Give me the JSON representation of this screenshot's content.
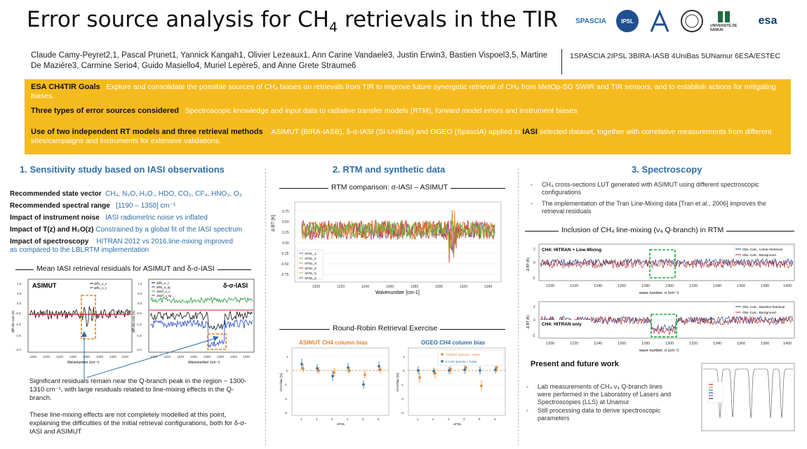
{
  "title": {
    "main": "Error source analysis for CH",
    "sub": "4",
    "rest": " retrievals in the TIR"
  },
  "logos": [
    "SPASCIA",
    "IPSL",
    "BIRA",
    "UniBas",
    "UNIVERSITÉ DE NAMUR",
    "esa"
  ],
  "authors": "Claude Camy-Peyret2,1, Pascal Prunet1, Yannick Kangah1, Olivier Lezeaux1, Ann Carine Vandaele3, Justin Erwin3, Bastien Vispoel3,5, Martine De Mazière3, Carmine Serio4, Guido Masiello4, Muriel Lepère5, and Anne Grete Straume6",
  "affiliations": "1SPASCIA 2IPSL 3BIRA-IASB 4UniBas 5UNamur 6ESA/ESTEC",
  "goals": {
    "g1_label": "ESA CH4TIR Goals",
    "g1_text": "Explore and consolidate the possible sources of CH₄ biases on retrievals from TIR to improve future synergetic retrieval of CH₄ from MetOp-SG SWIR and TIR sensors, and to establish actions for mitigating biases.",
    "g2_label": "Three types of error sources considered",
    "g2_text": "Spectroscopic knowledge and input data to radiative transfer models (RTM), forward model errors and instrument biases",
    "g3_label": "Use of two independent RT models and three retrieval methods",
    "g3_text_a": "ASIMUT (BIRA-IASB), δ-σ-IASI (SI-UniBas) and OGEO (SpasciA) applied to",
    "g3_iasi": "IASI",
    "g3_text_b": "selected dataset, together with correlative measurements from different sites/campaigns and instruments for extensive validations."
  },
  "sec1": {
    "heading": "1. Sensitivity study based on IASI observations",
    "rows": [
      {
        "label": "Recommended state vector",
        "value": "CH₄, N₂O, H₂O,, HDO, CO₂, CF₄, HNO₃, O₃"
      },
      {
        "label": "Recommended spectral range",
        "value": "[1190 – 1350] cm⁻¹"
      },
      {
        "label": "Impact of instrument noise",
        "value": "IASI radiometric noise vs inflated"
      },
      {
        "label": "Impact of T(z) and H₂O(z)",
        "value": "Constrained by a global fit of the IASI spectrum"
      },
      {
        "label": "Impact of spectroscopy",
        "value": "HITRAN 2012 vs 2016,line-mixing improved"
      }
    ],
    "row_extra": "as compared to the LBLRTM implementation",
    "resid_title": "Mean IASI retrieval residuals for ASIMUT and δ-σ-IASI",
    "asimut_label": "ASIMUT",
    "dsi_label": "δ-σ-IASI",
    "asimut_legend": [
      "diff1_o_c",
      "diff1_o_c"
    ],
    "dsi_legend": [
      "diff1_o_c",
      "diff1_o_tg",
      "obs/f_o_c",
      "obs/f_o_tg"
    ],
    "xlabel": "Wavenumber (cm⁻¹)",
    "ylabel_a": "diff obs-calc (K)",
    "ylabel_b": "diff obs-calc (K)",
    "yticks": [
      "1.0",
      "0.5",
      "0.0",
      "-0.5",
      "-1.0",
      "-1.5",
      "-2.0"
    ],
    "xticks": [
      "1200",
      "1220",
      "1240",
      "1260",
      "1280",
      "1300",
      "1320",
      "1340"
    ],
    "note1": "Significant residuals remain near the Q-branch peak in the region ~ 1300-1310 cm⁻¹, with large residuals related to line-mixing effects in the Q-branch.",
    "note2": "These line-mixing effects are not completely modelled at this point, explaining the difficulties of the initial retrieval configurations, both for δ-σ-IASI and ASIMUT"
  },
  "sec2": {
    "heading": "2. RTM and synthetic data",
    "rtm_title": "RTM comparison: σ-IASI – ASIMUT",
    "rtm_ylabel": "Δ BT [K]",
    "rtm_xlabel": "Wavenumber [cm-1]",
    "rtm_yticks": [
      "0.75",
      "0.50",
      "0.25",
      "0.00",
      "-0.25",
      "-0.50",
      "-0.75"
    ],
    "rtm_xticks": [
      "1200",
      "1220",
      "1240",
      "1260",
      "1280",
      "1300",
      "1320",
      "1340"
    ],
    "rtm_legend": [
      "AFGL_1",
      "AFGL_2",
      "AFGL_3",
      "AFGL_4",
      "AFGL_5",
      "AFGL_6"
    ],
    "rr_title": "Round-Robin Retrieval Exercise",
    "asimut_bias_title": "ASIMUT CH4 column bias",
    "ogeo_bias_title": "OGEO CH4 column bias",
    "bias_ylabel": "CH4 bias [%]",
    "bias_xlabel": "AFGL",
    "bias_yticks": [
      "1",
      "0",
      "-1",
      "-2",
      "-3"
    ],
    "bias_xticks": [
      "1",
      "2",
      "3",
      "4",
      "5",
      "6"
    ],
    "ogeo_legend": [
      "ASIMUT spectra + noise",
      "σ-IASI spectra + noise"
    ]
  },
  "sec3": {
    "heading": "3. Spectroscopy",
    "bullet1": "CH₄ cross-sections LUT generated with ASIMUT using different spectroscopic configurations",
    "bullet2": "The implementation of the Tran Line-Mixing data [Tran et al., 2006] improves the retrieval residuals",
    "lm_title": "Inclusion of CH₄ line-mixing (ν₄ Q-branch) in RTM",
    "panel1_label": "CH4: HITRAN + Line-Mixing",
    "panel1_legend": [
      "Obs.-Calc., Lmtran Retrieval",
      "Obs.-Calc., Background"
    ],
    "panel2_label": "CH4: HITRAN only",
    "panel2_legend": [
      "Obs.-Calc., Baseline Retrieval",
      "Obs.-Calc., Background"
    ],
    "dbt_label": "Δ BT (K)",
    "wn_label": "wave number, σ (cm⁻¹)",
    "xticks": [
      "1200",
      "1220",
      "1240",
      "1260",
      "1280",
      "1300",
      "1320",
      "1340",
      "1360",
      "1380",
      "1400"
    ],
    "yticks": [
      "2",
      "0",
      "-2"
    ],
    "future_title": "Present and future work",
    "future1": "Lab measurements of CH₄ ν₄ Q-branch lines were performed in the Laboratory of Lasers and Spectroscopies (LLS) at Unamur",
    "future2": "Still processing data to derive spectroscopic parameters"
  },
  "colors": {
    "accent": "#2e6ea6",
    "banner": "#f5bb1e",
    "orange": "#e8832a",
    "green": "#22aa44"
  }
}
